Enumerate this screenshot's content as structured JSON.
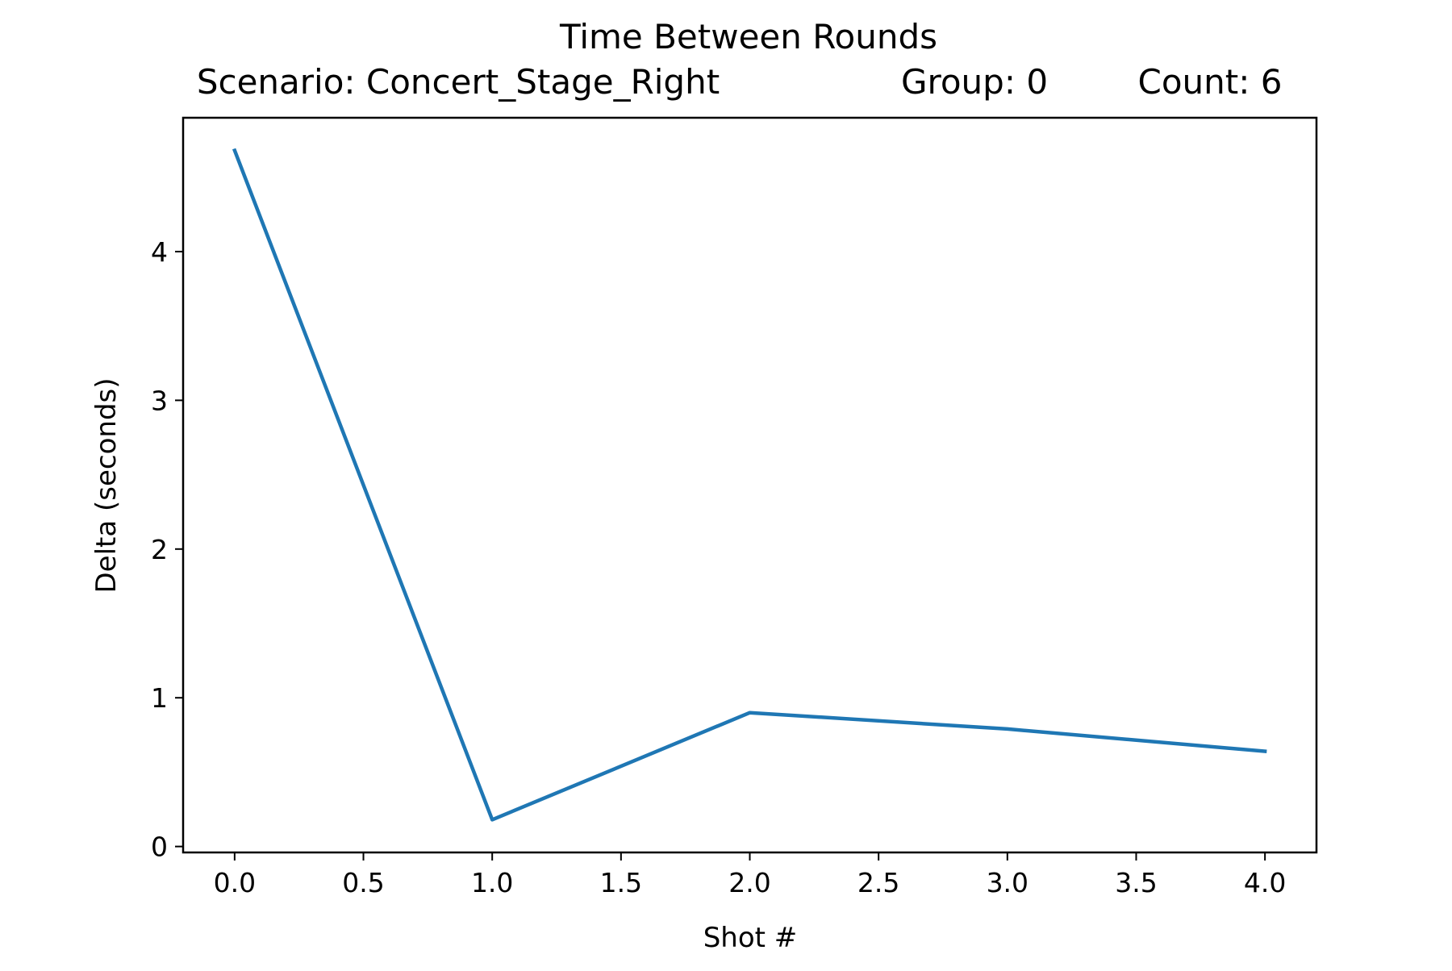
{
  "chart_data": {
    "type": "line",
    "title": "Time Between Rounds",
    "subtitle_parts": {
      "scenario": "Scenario: Concert_Stage_Right",
      "group": "Group: 0",
      "count": "Count: 6"
    },
    "xlabel": "Shot #",
    "ylabel": "Delta (seconds)",
    "xlim": [
      -0.2,
      4.2
    ],
    "ylim": [
      -0.04,
      4.9
    ],
    "x_ticks": [
      0.0,
      0.5,
      1.0,
      1.5,
      2.0,
      2.5,
      3.0,
      3.5,
      4.0
    ],
    "x_tick_labels": [
      "0.0",
      "0.5",
      "1.0",
      "1.5",
      "2.0",
      "2.5",
      "3.0",
      "3.5",
      "4.0"
    ],
    "y_ticks": [
      0,
      1,
      2,
      3,
      4
    ],
    "y_tick_labels": [
      "0",
      "1",
      "2",
      "3",
      "4"
    ],
    "grid": false,
    "series": [
      {
        "x": [
          0,
          1,
          2,
          3,
          4
        ],
        "values": [
          4.68,
          0.18,
          0.9,
          0.79,
          0.64
        ],
        "color": "#1f77b4"
      }
    ]
  }
}
